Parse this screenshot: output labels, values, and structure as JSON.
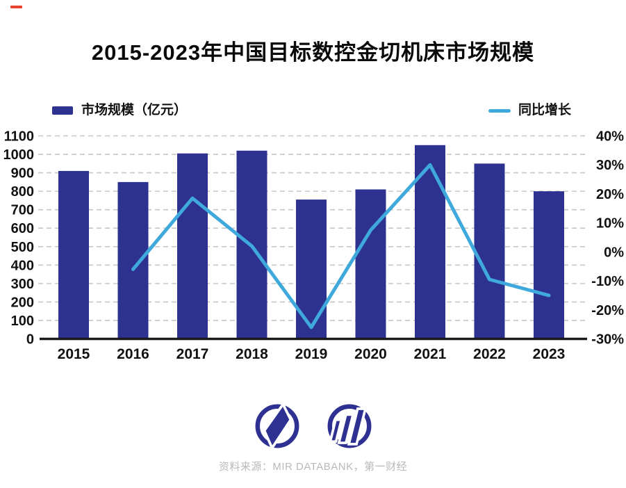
{
  "page": {
    "background": "#ffffff",
    "red_mark_color": "#e8432c"
  },
  "colors": {
    "bar": "#2d3190",
    "line": "#3fa9dc",
    "grid": "#c6c6c6",
    "axis": "#1a1a1a",
    "logo": "#2e3192",
    "source": "#b9b9b9"
  },
  "legend": {
    "bars_label": "市场规模（亿元）",
    "line_label": "同比增长"
  },
  "chart_data": {
    "type": "bar",
    "title": "2015-2023年中国目标数控金切机床市场规模",
    "categories": [
      "2015",
      "2016",
      "2017",
      "2018",
      "2019",
      "2020",
      "2021",
      "2022",
      "2023"
    ],
    "series": [
      {
        "name": "市场规模（亿元）",
        "type": "bar",
        "axis": "left",
        "values": [
          910,
          850,
          1005,
          1020,
          755,
          810,
          1050,
          950,
          800
        ]
      },
      {
        "name": "同比增长",
        "type": "line",
        "axis": "right",
        "unit": "%",
        "values": [
          null,
          -6,
          18.5,
          2,
          -26,
          7.5,
          30,
          -9.5,
          -15
        ]
      }
    ],
    "left_axis": {
      "label": "市场规模（亿元）",
      "min": 0,
      "max": 1100,
      "step": 100,
      "ticks": [
        "0",
        "100",
        "200",
        "300",
        "400",
        "500",
        "600",
        "700",
        "800",
        "900",
        "1000",
        "1100"
      ]
    },
    "right_axis": {
      "label": "同比增长",
      "min": -30,
      "max": 40,
      "step": 10,
      "tick_format": "percent",
      "ticks": [
        "-30%",
        "-20%",
        "-10%",
        "0%",
        "10%",
        "20%",
        "30%",
        "40%"
      ]
    },
    "grid": "horizontal-dashed",
    "legend_position": "top"
  },
  "footer": {
    "logo_icons": [
      "yicai-circle-logo",
      "mir-bars-logo"
    ],
    "source": "资料来源：MIR DATABANK，第一财经"
  }
}
